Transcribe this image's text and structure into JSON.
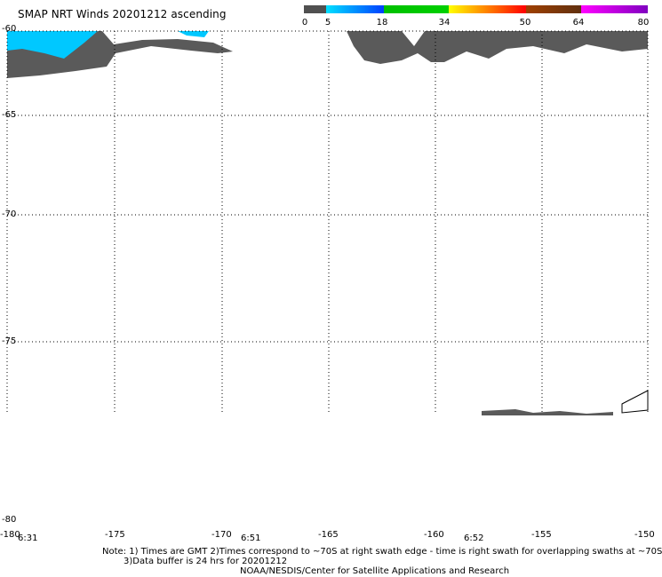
{
  "title": "SMAP NRT Winds 20201212 ascending",
  "colorbar": {
    "labels": [
      "0",
      "5",
      "18",
      "34",
      "50",
      "64",
      "80"
    ],
    "colors": [
      "#505050",
      "#00d0ff",
      "#0030ff",
      "#00c000",
      "#ffff00",
      "#ff8000",
      "#ff0000",
      "#804000",
      "#ff00ff",
      "#8000c0"
    ]
  },
  "lat_labels": [
    "-60",
    "-65",
    "-70",
    "-75",
    "-80"
  ],
  "lon_labels": [
    "-180",
    "-175",
    "-170",
    "-165",
    "-160",
    "-155",
    "-150"
  ],
  "time_labels": [
    "6:31",
    "6:51",
    "6:52"
  ],
  "notes": {
    "line1": "Note: 1) Times are GMT 2)Times correspond to ~70S at right swath edge - time is right swath for overlapping swaths at ~70S",
    "line2": "3)Data buffer is 24 hrs for 20201212",
    "line3": "NOAA/NESDIS/Center for Satellite Applications and Research"
  },
  "colors": {
    "swath_low": "#5a5a5a",
    "swath_mid": "#00c8ff",
    "grid": "#000000"
  }
}
